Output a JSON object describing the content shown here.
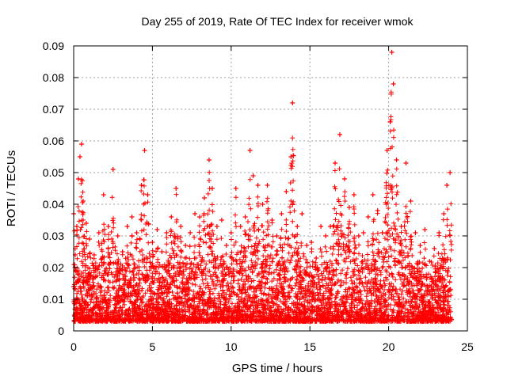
{
  "chart_data": {
    "type": "scatter",
    "title": "Day 255 of 2019, Rate Of TEC Index for receiver wmok",
    "xlabel": "GPS time / hours",
    "ylabel": "ROTI / TECUs",
    "xlim": [
      0,
      25
    ],
    "ylim": [
      0,
      0.09
    ],
    "x_ticks": [
      0,
      5,
      10,
      15,
      20,
      25
    ],
    "x_tick_labels": [
      "0",
      "5",
      "10",
      "15",
      "20",
      "25"
    ],
    "y_ticks": [
      0,
      0.01,
      0.02,
      0.03,
      0.04,
      0.05,
      0.06,
      0.07,
      0.08,
      0.09
    ],
    "y_tick_labels": [
      "0",
      "0.01",
      "0.02",
      "0.03",
      "0.04",
      "0.05",
      "0.06",
      "0.07",
      "0.08",
      "0.09"
    ],
    "grid": true,
    "legend": "none",
    "marker": "plus",
    "series": [
      {
        "color": "#ff0000",
        "x": [
          0.0,
          0.1,
          0.2,
          0.3,
          0.4,
          0.5,
          0.6,
          0.8,
          1.0,
          1.3,
          1.6,
          1.9,
          2.2,
          2.5,
          2.8,
          3.1,
          3.4,
          3.7,
          4.0,
          4.3,
          4.5,
          4.7,
          5.0,
          5.3,
          5.6,
          5.9,
          6.2,
          6.5,
          6.8,
          7.1,
          7.4,
          7.7,
          8.0,
          8.3,
          8.6,
          8.8,
          9.1,
          9.4,
          9.7,
          10.0,
          10.3,
          10.6,
          10.9,
          11.2,
          11.4,
          11.7,
          12.0,
          12.3,
          12.6,
          12.9,
          13.2,
          13.5,
          13.8,
          13.9,
          14.2,
          14.5,
          14.8,
          15.1,
          15.4,
          15.7,
          16.0,
          16.3,
          16.6,
          16.9,
          17.2,
          17.5,
          17.8,
          18.1,
          18.4,
          18.7,
          19.0,
          19.3,
          19.6,
          19.9,
          20.1,
          20.2,
          20.3,
          20.5,
          20.8,
          21.1,
          21.4,
          21.7,
          22.0,
          22.3,
          22.6,
          22.9,
          23.2,
          23.5,
          23.7,
          23.9
        ],
        "y": [
          0.037,
          0.024,
          0.033,
          0.048,
          0.055,
          0.059,
          0.041,
          0.034,
          0.029,
          0.024,
          0.031,
          0.043,
          0.033,
          0.051,
          0.03,
          0.025,
          0.033,
          0.036,
          0.031,
          0.046,
          0.057,
          0.043,
          0.028,
          0.032,
          0.025,
          0.031,
          0.036,
          0.045,
          0.033,
          0.027,
          0.031,
          0.037,
          0.036,
          0.042,
          0.054,
          0.045,
          0.033,
          0.035,
          0.027,
          0.031,
          0.045,
          0.033,
          0.036,
          0.057,
          0.049,
          0.046,
          0.04,
          0.046,
          0.035,
          0.03,
          0.037,
          0.044,
          0.055,
          0.072,
          0.033,
          0.037,
          0.027,
          0.028,
          0.023,
          0.033,
          0.03,
          0.033,
          0.053,
          0.062,
          0.048,
          0.039,
          0.043,
          0.03,
          0.031,
          0.036,
          0.043,
          0.038,
          0.031,
          0.057,
          0.066,
          0.088,
          0.078,
          0.054,
          0.033,
          0.053,
          0.041,
          0.031,
          0.027,
          0.032,
          0.022,
          0.026,
          0.031,
          0.037,
          0.046,
          0.05
        ]
      }
    ]
  }
}
